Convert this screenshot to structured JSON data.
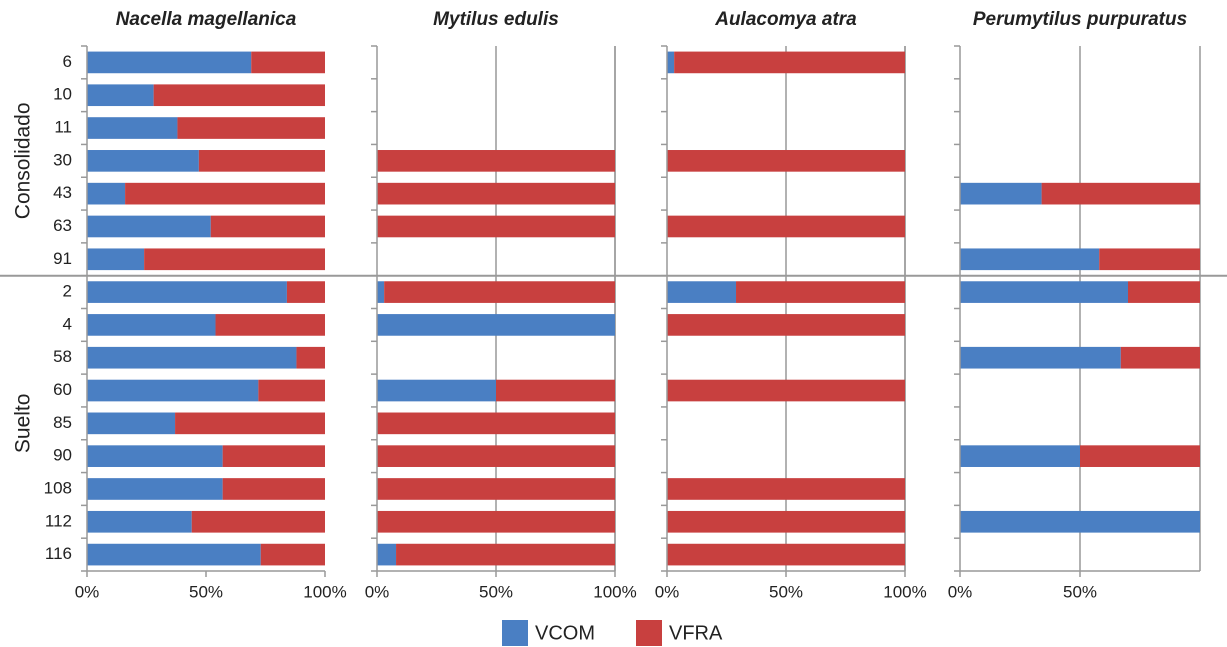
{
  "chart_data": {
    "type": "bar",
    "orientation": "horizontal",
    "stacked": true,
    "groups": [
      {
        "name": "Consolidado",
        "categories": [
          "6",
          "10",
          "11",
          "30",
          "43",
          "63",
          "91"
        ]
      },
      {
        "name": "Suelto",
        "categories": [
          "2",
          "4",
          "58",
          "60",
          "85",
          "90",
          "108",
          "112",
          "116"
        ]
      }
    ],
    "series": [
      {
        "name": "VCOM",
        "color": "#4a7fc3"
      },
      {
        "name": "VFRA",
        "color": "#c8403f"
      }
    ],
    "panels": [
      {
        "title": "Nacella magellanica",
        "xlim": [
          0,
          100
        ],
        "grid": false,
        "xticks": [
          {
            "value": 0,
            "label": "0%"
          },
          {
            "value": 50,
            "label": "50%"
          },
          {
            "value": 100,
            "label": "100%"
          }
        ],
        "series": [
          {
            "values": [
              69,
              28,
              38,
              47,
              16,
              52,
              24,
              84,
              54,
              88,
              72,
              37,
              57,
              57,
              44,
              73
            ]
          },
          {
            "values": [
              31,
              72,
              62,
              53,
              84,
              48,
              76,
              16,
              46,
              12,
              28,
              63,
              43,
              43,
              56,
              27
            ]
          }
        ]
      },
      {
        "title": "Mytilus edulis",
        "xlim": [
          0,
          100
        ],
        "grid": true,
        "xticks": [
          {
            "value": 0,
            "label": "0%"
          },
          {
            "value": 50,
            "label": "50%"
          },
          {
            "value": 100,
            "label": "100%"
          }
        ],
        "series": [
          {
            "values": [
              null,
              null,
              null,
              0,
              0,
              0,
              null,
              3,
              100,
              null,
              50,
              0,
              0,
              0,
              0,
              8
            ]
          },
          {
            "values": [
              null,
              null,
              null,
              100,
              100,
              100,
              null,
              97,
              0,
              null,
              50,
              100,
              100,
              100,
              100,
              92
            ]
          }
        ]
      },
      {
        "title": "Aulacomya atra",
        "xlim": [
          0,
          100
        ],
        "grid": true,
        "xticks": [
          {
            "value": 0,
            "label": "0%"
          },
          {
            "value": 50,
            "label": "50%"
          },
          {
            "value": 100,
            "label": "100%"
          }
        ],
        "series": [
          {
            "values": [
              3,
              null,
              null,
              0,
              null,
              0,
              null,
              29,
              0,
              null,
              0,
              null,
              null,
              0,
              0,
              0
            ]
          },
          {
            "values": [
              97,
              null,
              null,
              100,
              null,
              100,
              null,
              71,
              100,
              null,
              100,
              null,
              null,
              100,
              100,
              100
            ]
          }
        ]
      },
      {
        "title": "Perumytilus purpuratus",
        "xlim": [
          0,
          100
        ],
        "grid": true,
        "xticks": [
          {
            "value": 0,
            "label": "0%"
          },
          {
            "value": 50,
            "label": "50%"
          }
        ],
        "series": [
          {
            "values": [
              null,
              null,
              null,
              null,
              34,
              null,
              58,
              70,
              null,
              67,
              null,
              null,
              50,
              null,
              100,
              null
            ]
          },
          {
            "values": [
              null,
              null,
              null,
              null,
              66,
              null,
              42,
              30,
              null,
              33,
              null,
              null,
              50,
              null,
              0,
              null
            ]
          }
        ]
      }
    ]
  }
}
